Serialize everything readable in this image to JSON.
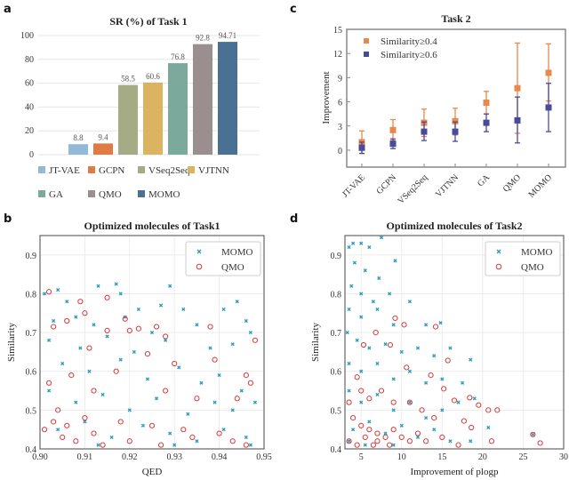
{
  "panels": {
    "a": "a",
    "b": "b",
    "c": "c",
    "d": "d"
  },
  "chart_data": [
    {
      "type": "bar",
      "title": "SR (%) of Task 1",
      "categories": [
        "JT-VAE",
        "GCPN",
        "VSeq2Seq",
        "VJTNN",
        "GA",
        "QMO",
        "MOMO"
      ],
      "values": [
        8.8,
        9.4,
        58.5,
        60.6,
        76.8,
        92.8,
        94.71
      ],
      "data_labels": [
        "8.8",
        "9.4",
        "58.5",
        "60.6",
        "76.8",
        "92.8",
        "94.71"
      ],
      "colors": [
        "#93b9d9",
        "#e07b43",
        "#a5ac85",
        "#dab461",
        "#7ba99c",
        "#9a8f8e",
        "#4a7094"
      ],
      "ylim": [
        0,
        100
      ],
      "yticks": [
        "0",
        "20",
        "40",
        "60",
        "80",
        "100"
      ],
      "grid": true,
      "legend": "bottom"
    },
    {
      "type": "scatter",
      "title": "Optimized molecules of Task1",
      "xlabel": "QED",
      "ylabel": "Similarity",
      "xlim": [
        0.9,
        0.95
      ],
      "ylim": [
        0.4,
        0.95
      ],
      "xticks": [
        "0.90",
        "0.91",
        "0.92",
        "0.93",
        "0.94",
        "0.95"
      ],
      "yticks": [
        "0.4",
        "0.5",
        "0.6",
        "0.7",
        "0.8",
        "0.9"
      ],
      "grid": true,
      "legend": "top-right",
      "series": [
        {
          "name": "MOMO",
          "color": "#2c9dc3",
          "marker": "x",
          "points": [
            [
              0.901,
              0.8
            ],
            [
              0.904,
              0.81
            ],
            [
              0.913,
              0.82
            ],
            [
              0.917,
              0.825
            ],
            [
              0.929,
              0.82
            ],
            [
              0.918,
              0.8
            ],
            [
              0.906,
              0.78
            ],
            [
              0.922,
              0.76
            ],
            [
              0.927,
              0.77
            ],
            [
              0.932,
              0.76
            ],
            [
              0.944,
              0.78
            ],
            [
              0.941,
              0.76
            ],
            [
              0.903,
              0.73
            ],
            [
              0.908,
              0.74
            ],
            [
              0.912,
              0.72
            ],
            [
              0.919,
              0.74
            ],
            [
              0.925,
              0.7
            ],
            [
              0.935,
              0.72
            ],
            [
              0.946,
              0.73
            ],
            [
              0.902,
              0.68
            ],
            [
              0.909,
              0.66
            ],
            [
              0.915,
              0.69
            ],
            [
              0.921,
              0.65
            ],
            [
              0.928,
              0.68
            ],
            [
              0.938,
              0.66
            ],
            [
              0.943,
              0.67
            ],
            [
              0.947,
              0.7
            ],
            [
              0.905,
              0.62
            ],
            [
              0.911,
              0.6
            ],
            [
              0.918,
              0.63
            ],
            [
              0.924,
              0.58
            ],
            [
              0.931,
              0.61
            ],
            [
              0.936,
              0.57
            ],
            [
              0.94,
              0.59
            ],
            [
              0.945,
              0.55
            ],
            [
              0.902,
              0.55
            ],
            [
              0.908,
              0.52
            ],
            [
              0.914,
              0.54
            ],
            [
              0.92,
              0.5
            ],
            [
              0.926,
              0.53
            ],
            [
              0.933,
              0.49
            ],
            [
              0.939,
              0.52
            ],
            [
              0.943,
              0.5
            ],
            [
              0.948,
              0.52
            ],
            [
              0.904,
              0.45
            ],
            [
              0.91,
              0.47
            ],
            [
              0.916,
              0.43
            ],
            [
              0.923,
              0.46
            ],
            [
              0.929,
              0.44
            ],
            [
              0.935,
              0.42
            ],
            [
              0.941,
              0.45
            ],
            [
              0.946,
              0.43
            ],
            [
              0.947,
              0.41
            ],
            [
              0.913,
              0.41
            ],
            [
              0.93,
              0.41
            ]
          ]
        },
        {
          "name": "QMO",
          "color": "#d63a3a",
          "marker": "o",
          "points": [
            [
              0.902,
              0.805
            ],
            [
              0.915,
              0.79
            ],
            [
              0.909,
              0.78
            ],
            [
              0.906,
              0.73
            ],
            [
              0.91,
              0.75
            ],
            [
              0.903,
              0.715
            ],
            [
              0.919,
              0.735
            ],
            [
              0.922,
              0.71
            ],
            [
              0.926,
              0.715
            ],
            [
              0.938,
              0.715
            ],
            [
              0.948,
              0.68
            ],
            [
              0.928,
              0.69
            ],
            [
              0.915,
              0.705
            ],
            [
              0.92,
              0.705
            ],
            [
              0.911,
              0.66
            ],
            [
              0.924,
              0.645
            ],
            [
              0.939,
              0.63
            ],
            [
              0.93,
              0.62
            ],
            [
              0.917,
              0.6
            ],
            [
              0.907,
              0.59
            ],
            [
              0.902,
              0.57
            ],
            [
              0.946,
              0.59
            ],
            [
              0.947,
              0.57
            ],
            [
              0.912,
              0.55
            ],
            [
              0.928,
              0.55
            ],
            [
              0.935,
              0.53
            ],
            [
              0.944,
              0.53
            ],
            [
              0.904,
              0.5
            ],
            [
              0.91,
              0.48
            ],
            [
              0.918,
              0.47
            ],
            [
              0.925,
              0.46
            ],
            [
              0.932,
              0.45
            ],
            [
              0.94,
              0.44
            ],
            [
              0.901,
              0.45
            ],
            [
              0.905,
              0.43
            ],
            [
              0.908,
              0.42
            ],
            [
              0.914,
              0.41
            ],
            [
              0.92,
              0.42
            ],
            [
              0.927,
              0.41
            ],
            [
              0.934,
              0.43
            ],
            [
              0.943,
              0.42
            ],
            [
              0.946,
              0.41
            ],
            [
              0.903,
              0.47
            ],
            [
              0.906,
              0.46
            ],
            [
              0.912,
              0.44
            ]
          ]
        }
      ]
    },
    {
      "type": "errorbar",
      "title": "Task 2",
      "ylabel": "Improvement",
      "categories": [
        "JT-VAE",
        "GCPN",
        "VSeq2Seq",
        "VJTNN",
        "GA",
        "QMO",
        "MOMO"
      ],
      "ylim": [
        -2.1,
        15
      ],
      "yticks": [
        "0",
        "3",
        "6",
        "9",
        "12",
        "15"
      ],
      "legend": "top-left",
      "series": [
        {
          "name": "Similarity≥0.4",
          "color": "#e8884a",
          "values": [
            1.0,
            2.5,
            3.4,
            3.6,
            5.9,
            7.7,
            9.6
          ],
          "low": [
            -0.4,
            1.2,
            1.7,
            1.9,
            4.5,
            2.1,
            6.1
          ],
          "high": [
            2.4,
            3.8,
            5.1,
            5.2,
            7.3,
            13.3,
            13.2
          ]
        },
        {
          "name": "Similarity≥0.6",
          "color": "#4a4a9a",
          "values": [
            0.3,
            0.8,
            2.3,
            2.3,
            3.4,
            3.7,
            5.3
          ],
          "low": [
            -0.4,
            0.2,
            1.2,
            1.1,
            2.3,
            0.9,
            2.3
          ],
          "high": [
            1.0,
            1.4,
            3.5,
            3.5,
            4.5,
            6.6,
            8.3
          ]
        }
      ]
    },
    {
      "type": "scatter",
      "title": "Optimized molecules of Task2",
      "xlabel": "Improvement of plogp",
      "ylabel": "Similarity",
      "xlim": [
        3,
        30
      ],
      "ylim": [
        0.4,
        0.95
      ],
      "xticks": [
        "5",
        "10",
        "15",
        "20",
        "25",
        "30"
      ],
      "yticks": [
        "0.4",
        "0.5",
        "0.6",
        "0.7",
        "0.8",
        "0.9"
      ],
      "grid": true,
      "legend": "top-right",
      "series": [
        {
          "name": "MOMO",
          "color": "#2c9dc3",
          "marker": "x",
          "points": [
            [
              3.5,
              0.92
            ],
            [
              4,
              0.93
            ],
            [
              5,
              0.93
            ],
            [
              6,
              0.92
            ],
            [
              7.5,
              0.945
            ],
            [
              4.2,
              0.88
            ],
            [
              5.5,
              0.86
            ],
            [
              7.2,
              0.84
            ],
            [
              9.2,
              0.885
            ],
            [
              3.8,
              0.82
            ],
            [
              5,
              0.8
            ],
            [
              6.5,
              0.78
            ],
            [
              8.5,
              0.8
            ],
            [
              3.5,
              0.76
            ],
            [
              5,
              0.74
            ],
            [
              7,
              0.76
            ],
            [
              9,
              0.72
            ],
            [
              11,
              0.78
            ],
            [
              13,
              0.72
            ],
            [
              14.8,
              0.725
            ],
            [
              3.3,
              0.7
            ],
            [
              4.5,
              0.68
            ],
            [
              6,
              0.66
            ],
            [
              8,
              0.67
            ],
            [
              10,
              0.65
            ],
            [
              12,
              0.66
            ],
            [
              14,
              0.64
            ],
            [
              16,
              0.66
            ],
            [
              3.5,
              0.62
            ],
            [
              5,
              0.6
            ],
            [
              7,
              0.62
            ],
            [
              9,
              0.58
            ],
            [
              11,
              0.6
            ],
            [
              13,
              0.57
            ],
            [
              15,
              0.58
            ],
            [
              17.5,
              0.57
            ],
            [
              18.5,
              0.63
            ],
            [
              3.5,
              0.55
            ],
            [
              5,
              0.52
            ],
            [
              7,
              0.54
            ],
            [
              9,
              0.5
            ],
            [
              11,
              0.52
            ],
            [
              13,
              0.48
            ],
            [
              15,
              0.5
            ],
            [
              17,
              0.52
            ],
            [
              19,
              0.53
            ],
            [
              20.7,
              0.455
            ],
            [
              4,
              0.45
            ],
            [
              6,
              0.47
            ],
            [
              8,
              0.44
            ],
            [
              10,
              0.46
            ],
            [
              12,
              0.43
            ],
            [
              14,
              0.45
            ],
            [
              16,
              0.42
            ],
            [
              18.5,
              0.42
            ],
            [
              26.2,
              0.437
            ],
            [
              3.5,
              0.42
            ],
            [
              5.5,
              0.41
            ],
            [
              9,
              0.41
            ]
          ]
        },
        {
          "name": "QMO",
          "color": "#d63a3a",
          "marker": "o",
          "points": [
            [
              9.2,
              0.737
            ],
            [
              10.3,
              0.72
            ],
            [
              14.2,
              0.715
            ],
            [
              6.8,
              0.7
            ],
            [
              8.6,
              0.668
            ],
            [
              5.3,
              0.668
            ],
            [
              15.7,
              0.628
            ],
            [
              10.6,
              0.61
            ],
            [
              13.6,
              0.59
            ],
            [
              4.5,
              0.585
            ],
            [
              15.2,
              0.555
            ],
            [
              16.5,
              0.525
            ],
            [
              18.4,
              0.532
            ],
            [
              19.5,
              0.513
            ],
            [
              20.7,
              0.5
            ],
            [
              21.8,
              0.5
            ],
            [
              17.7,
              0.472
            ],
            [
              18.6,
              0.455
            ],
            [
              21.1,
              0.42
            ],
            [
              26.2,
              0.437
            ],
            [
              27.1,
              0.415
            ],
            [
              3.5,
              0.52
            ],
            [
              5,
              0.55
            ],
            [
              6,
              0.53
            ],
            [
              7.5,
              0.55
            ],
            [
              9,
              0.52
            ],
            [
              11,
              0.52
            ],
            [
              12.5,
              0.5
            ],
            [
              14,
              0.48
            ],
            [
              4,
              0.48
            ],
            [
              5,
              0.46
            ],
            [
              6,
              0.45
            ],
            [
              7,
              0.44
            ],
            [
              8,
              0.43
            ],
            [
              9,
              0.45
            ],
            [
              10,
              0.43
            ],
            [
              11,
              0.42
            ],
            [
              12,
              0.44
            ],
            [
              13,
              0.42
            ],
            [
              15,
              0.43
            ],
            [
              17,
              0.41
            ],
            [
              3.5,
              0.42
            ],
            [
              4.5,
              0.41
            ],
            [
              6.5,
              0.41
            ],
            [
              8.5,
              0.41
            ],
            [
              5.5,
              0.43
            ],
            [
              7,
              0.42
            ]
          ]
        }
      ]
    }
  ]
}
